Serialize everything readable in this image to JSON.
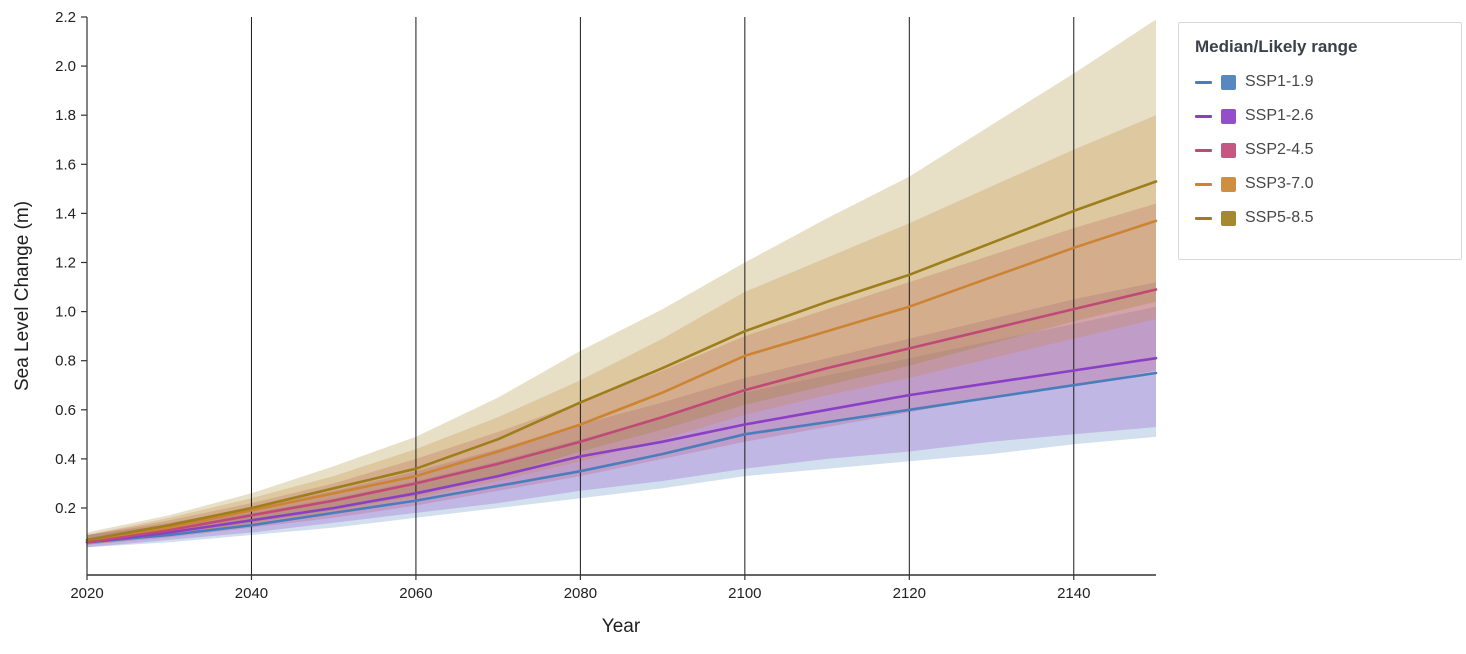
{
  "chart_data": {
    "type": "line",
    "title": "",
    "xlabel": "Year",
    "ylabel": "Sea Level Change (m)",
    "legend_title": "Median/Likely range",
    "xlim": [
      2020,
      2150
    ],
    "ylim": [
      -0.073,
      2.2
    ],
    "x_ticks": [
      2020,
      2040,
      2060,
      2080,
      2100,
      2120,
      2140
    ],
    "y_ticks": [
      0.2,
      0.4,
      0.6,
      0.8,
      1.0,
      1.2,
      1.4,
      1.6,
      1.8,
      2.0,
      2.2
    ],
    "gridline_years": [
      2040,
      2060,
      2080,
      2100,
      2120,
      2140
    ],
    "grid": "vertical-only",
    "legend_position": "top-right",
    "years": [
      2020,
      2030,
      2040,
      2050,
      2060,
      2070,
      2080,
      2090,
      2100,
      2110,
      2120,
      2130,
      2140,
      2150
    ],
    "series": [
      {
        "name": "SSP1-1.9",
        "color": "#4a7ebb",
        "median": [
          0.06,
          0.09,
          0.13,
          0.18,
          0.23,
          0.29,
          0.35,
          0.42,
          0.5,
          0.55,
          0.6,
          0.65,
          0.7,
          0.75
        ],
        "low": [
          0.04,
          0.06,
          0.09,
          0.12,
          0.16,
          0.2,
          0.24,
          0.28,
          0.33,
          0.36,
          0.39,
          0.42,
          0.46,
          0.49
        ],
        "high": [
          0.09,
          0.13,
          0.18,
          0.24,
          0.31,
          0.39,
          0.48,
          0.57,
          0.67,
          0.74,
          0.81,
          0.88,
          0.95,
          1.02
        ]
      },
      {
        "name": "SSP1-2.6",
        "color": "#8b3fc6",
        "median": [
          0.06,
          0.1,
          0.15,
          0.2,
          0.26,
          0.33,
          0.41,
          0.47,
          0.54,
          0.6,
          0.66,
          0.71,
          0.76,
          0.81
        ],
        "low": [
          0.04,
          0.07,
          0.1,
          0.14,
          0.18,
          0.22,
          0.27,
          0.31,
          0.36,
          0.4,
          0.43,
          0.47,
          0.5,
          0.53
        ],
        "high": [
          0.09,
          0.14,
          0.2,
          0.27,
          0.35,
          0.44,
          0.54,
          0.63,
          0.73,
          0.81,
          0.89,
          0.97,
          1.05,
          1.12
        ]
      },
      {
        "name": "SSP2-4.5",
        "color": "#c04a77",
        "median": [
          0.06,
          0.11,
          0.17,
          0.23,
          0.3,
          0.38,
          0.47,
          0.57,
          0.68,
          0.77,
          0.85,
          0.93,
          1.01,
          1.09
        ],
        "low": [
          0.05,
          0.08,
          0.12,
          0.16,
          0.21,
          0.27,
          0.33,
          0.4,
          0.47,
          0.53,
          0.59,
          0.65,
          0.7,
          0.76
        ],
        "high": [
          0.09,
          0.15,
          0.22,
          0.3,
          0.4,
          0.51,
          0.63,
          0.76,
          0.9,
          1.01,
          1.12,
          1.23,
          1.34,
          1.44
        ]
      },
      {
        "name": "SSP3-7.0",
        "color": "#cc8433",
        "median": [
          0.07,
          0.12,
          0.19,
          0.26,
          0.33,
          0.43,
          0.54,
          0.67,
          0.82,
          0.92,
          1.02,
          1.14,
          1.26,
          1.37
        ],
        "low": [
          0.05,
          0.09,
          0.13,
          0.18,
          0.24,
          0.31,
          0.39,
          0.48,
          0.58,
          0.66,
          0.73,
          0.81,
          0.89,
          0.97
        ],
        "high": [
          0.09,
          0.16,
          0.24,
          0.33,
          0.44,
          0.57,
          0.72,
          0.89,
          1.08,
          1.22,
          1.36,
          1.51,
          1.66,
          1.8
        ]
      },
      {
        "name": "SSP5-8.5",
        "color": "#9e7e1c",
        "median": [
          0.07,
          0.13,
          0.2,
          0.28,
          0.36,
          0.48,
          0.63,
          0.77,
          0.92,
          1.04,
          1.15,
          1.28,
          1.41,
          1.53
        ],
        "low": [
          0.05,
          0.09,
          0.14,
          0.19,
          0.25,
          0.33,
          0.43,
          0.52,
          0.62,
          0.7,
          0.78,
          0.87,
          0.96,
          1.04
        ],
        "high": [
          0.1,
          0.17,
          0.26,
          0.37,
          0.49,
          0.65,
          0.84,
          1.01,
          1.2,
          1.38,
          1.55,
          1.76,
          1.97,
          2.19
        ]
      }
    ]
  }
}
